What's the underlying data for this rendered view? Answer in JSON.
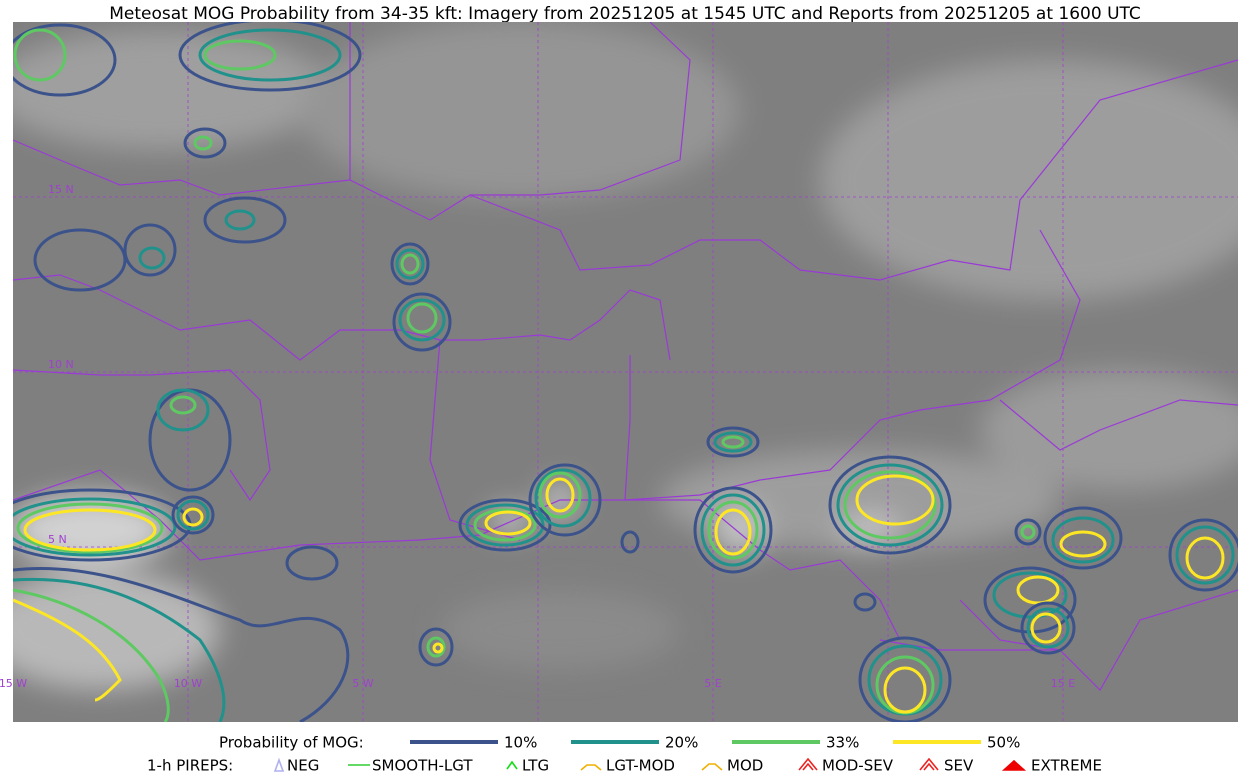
{
  "header": {
    "title": "Meteosat MOG Probability from 34-35 kft: Imagery from 20251205 at 1545 UTC and Reports from 20251205 at 1600 UTC"
  },
  "map": {
    "lat_labels": [
      "15 N",
      "10 N",
      "5 N"
    ],
    "lon_labels": [
      "15 W",
      "10 W",
      "5 W",
      "5 E",
      "15 E"
    ]
  },
  "legend": {
    "probability": {
      "label": "Probability of MOG:",
      "items": [
        {
          "label": "10%",
          "color": "#3b528b"
        },
        {
          "label": "20%",
          "color": "#21918c"
        },
        {
          "label": "33%",
          "color": "#5ec962"
        },
        {
          "label": "50%",
          "color": "#fde725"
        }
      ]
    },
    "pireps": {
      "label": "1-h PIREPS:",
      "items": [
        {
          "label": "NEG",
          "color": "#b0b0f0"
        },
        {
          "label": "SMOOTH-LGT",
          "color": "#33cc33"
        },
        {
          "label": "LTG",
          "color": "#11dd11"
        },
        {
          "label": "LGT-MOD",
          "color": "#f0b000"
        },
        {
          "label": "MOD",
          "color": "#f0b000"
        },
        {
          "label": "MOD-SEV",
          "color": "#ee2222"
        },
        {
          "label": "SEV",
          "color": "#ee2222"
        },
        {
          "label": "EXTREME",
          "color": "#ee0000"
        }
      ]
    }
  }
}
